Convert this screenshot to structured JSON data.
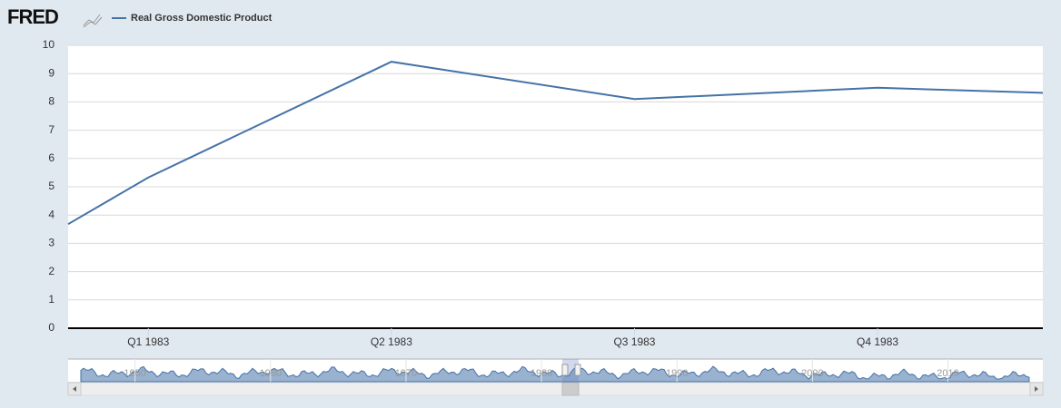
{
  "logo": "FRED",
  "chart_data": {
    "type": "line",
    "x": [
      -0.33,
      0,
      1,
      2,
      3,
      3.68
    ],
    "series": [
      {
        "name": "Real Gross Domestic Product",
        "color": "#4572a7",
        "values": [
          3.68,
          5.33,
          9.42,
          8.1,
          8.5,
          8.32
        ]
      }
    ],
    "xlim": [
      -0.33,
      3.68
    ],
    "xticks": [
      {
        "value": 0,
        "label": "Q1 1983"
      },
      {
        "value": 1,
        "label": "Q2 1983"
      },
      {
        "value": 2,
        "label": "Q3 1983"
      },
      {
        "value": 3,
        "label": "Q4 1983"
      }
    ],
    "ylim": [
      0,
      10
    ],
    "yticks": [
      0,
      1,
      2,
      3,
      4,
      5,
      6,
      7,
      8,
      9,
      10
    ],
    "grid": true
  },
  "navigator": {
    "xlim": [
      1946,
      2016
    ],
    "xticks": [
      1950,
      1960,
      1970,
      1980,
      1990,
      2000,
      2010
    ]
  }
}
